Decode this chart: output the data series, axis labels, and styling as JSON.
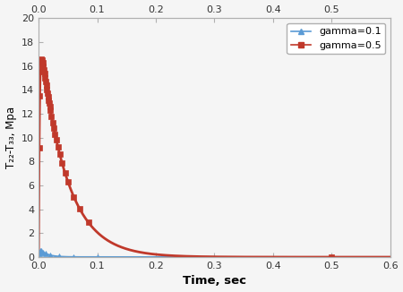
{
  "title": "",
  "xlabel": "Time, sec",
  "ylabel": "T₂₂-T₃₃, Mpa",
  "xlim": [
    0,
    0.6
  ],
  "ylim": [
    0,
    20
  ],
  "xticks_bottom": [
    0,
    0.1,
    0.2,
    0.3,
    0.4,
    0.5,
    0.6
  ],
  "xticks_top": [
    0,
    0.1,
    0.2,
    0.3,
    0.4,
    0.5
  ],
  "yticks": [
    0,
    2,
    4,
    6,
    8,
    10,
    12,
    14,
    16,
    18,
    20
  ],
  "series": [
    {
      "label": "gamma=0.1",
      "color": "#5b9bd5",
      "marker": "^",
      "rise_tau": 0.0018,
      "decay_tau": 0.012,
      "scale": 0.8
    },
    {
      "label": "gamma=0.5",
      "color": "#c0392b",
      "marker": "s",
      "rise_tau": 0.0015,
      "decay_tau": 0.045,
      "scale": 19.2
    }
  ],
  "blue_marker_t": [
    0.001,
    0.003,
    0.005,
    0.008,
    0.012,
    0.02,
    0.035,
    0.06,
    0.1
  ],
  "red_marker_t": [
    0.001,
    0.002,
    0.003,
    0.004,
    0.005,
    0.006,
    0.007,
    0.008,
    0.009,
    0.01,
    0.011,
    0.012,
    0.013,
    0.014,
    0.015,
    0.016,
    0.017,
    0.018,
    0.019,
    0.02,
    0.022,
    0.024,
    0.026,
    0.028,
    0.03,
    0.033,
    0.036,
    0.04,
    0.045,
    0.05,
    0.06,
    0.07,
    0.085,
    0.5
  ],
  "legend_loc": "upper right",
  "background_color": "#f5f5f5",
  "spine_color": "#b0b0b0"
}
